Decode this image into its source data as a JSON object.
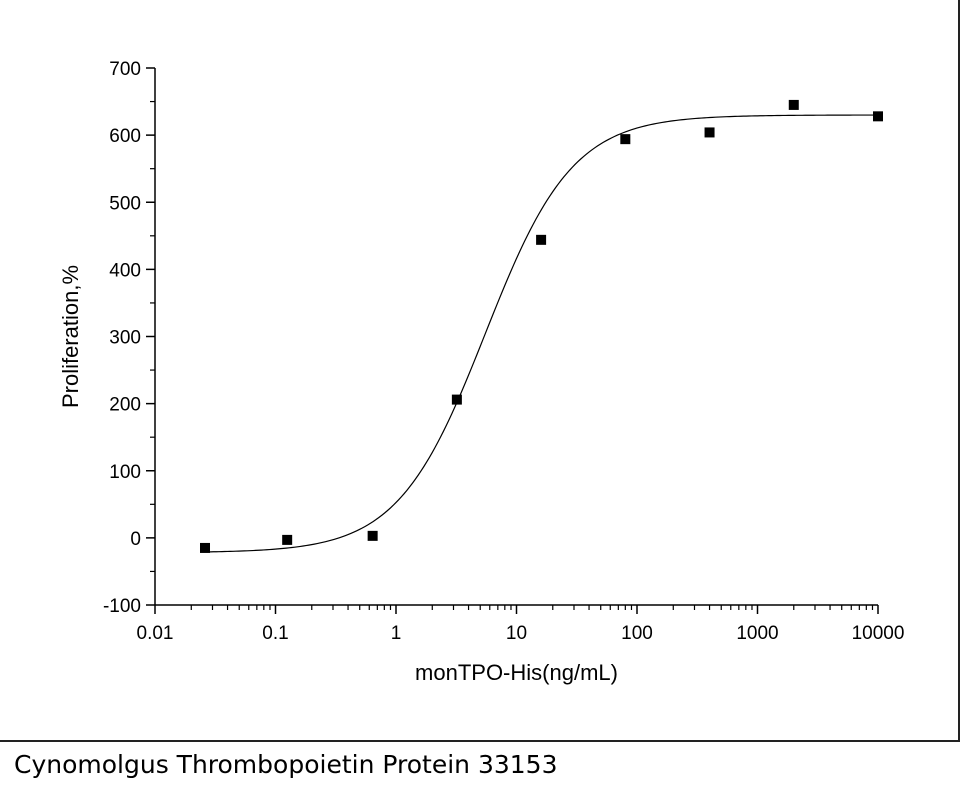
{
  "chart_data": {
    "type": "scatter",
    "xlabel": "monTPO-His(ng/mL)",
    "ylabel": "Proliferation,%",
    "xscale": "log",
    "xlim": [
      0.01,
      10000
    ],
    "ylim": [
      -100,
      700
    ],
    "x_ticks": [
      0.01,
      0.1,
      1,
      10,
      100,
      1000,
      10000
    ],
    "x_tick_labels": [
      "0.01",
      "0.1",
      "1",
      "10",
      "100",
      "1000",
      "10000"
    ],
    "y_ticks": [
      -100,
      0,
      100,
      200,
      300,
      400,
      500,
      600,
      700
    ],
    "y_tick_labels": [
      "-100",
      "0",
      "100",
      "200",
      "300",
      "400",
      "500",
      "600",
      "700"
    ],
    "grid": false,
    "legend": "none",
    "series": [
      {
        "marker": "square",
        "color": "#000000",
        "x": [
          0.026,
          0.125,
          0.64,
          3.2,
          16,
          80,
          400,
          2000,
          10000
        ],
        "y": [
          -15,
          -3,
          3,
          206,
          444,
          594,
          604,
          645,
          628
        ]
      }
    ],
    "fit_curve": {
      "model": "four-parameter logistic",
      "bottom": -22,
      "top": 630,
      "ec50": 5.5,
      "hill": 1.2,
      "x_range": [
        0.026,
        10000
      ],
      "color": "#000000"
    }
  },
  "caption": "Cynomolgus Thrombopoietin Protein 33153"
}
